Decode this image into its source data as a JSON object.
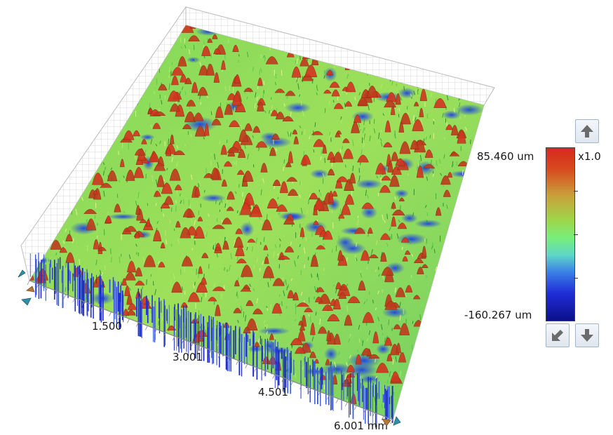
{
  "x_axis": {
    "ticks": [
      "1.500",
      "3.001",
      "4.501"
    ],
    "last_tick": "6.001",
    "unit": "mm"
  },
  "color_scale": {
    "max_label": "85.460 um",
    "min_label": "-160.267 um",
    "zoom_label": "x1.0",
    "max_value": 85.46,
    "min_value": -160.267,
    "unit": "um",
    "colors": [
      "#d62a1e",
      "#c9a23a",
      "#78ee7a",
      "#3a7fe6",
      "#0b0f8a"
    ]
  },
  "controls": {
    "up_icon": "arrow-up-icon",
    "down_icon": "arrow-down-icon",
    "reset_icon": "arrow-down-left-icon"
  }
}
